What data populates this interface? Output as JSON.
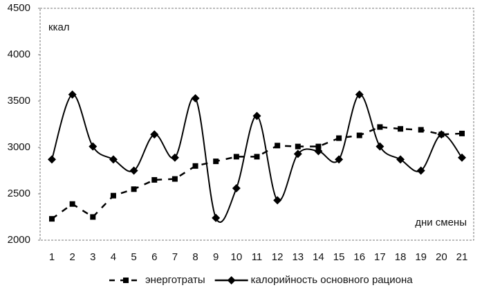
{
  "chart_data": {
    "type": "line",
    "y_label": "ккал",
    "x_label": "дни смены",
    "categories": [
      "1",
      "2",
      "3",
      "4",
      "5",
      "6",
      "7",
      "8",
      "9",
      "10",
      "11",
      "12",
      "13",
      "14",
      "15",
      "16",
      "17",
      "18",
      "19",
      "20",
      "21"
    ],
    "series": [
      {
        "name": "энерготраты",
        "color": "#000000",
        "style": "dashed",
        "marker": "square",
        "values": [
          2230,
          2390,
          2250,
          2480,
          2550,
          2650,
          2660,
          2800,
          2850,
          2900,
          2900,
          3020,
          3010,
          3010,
          3100,
          3130,
          3220,
          3200,
          3190,
          3140,
          3150
        ]
      },
      {
        "name": "калорийность основного рациона",
        "color": "#000000",
        "style": "smooth",
        "marker": "diamond",
        "values": [
          2870,
          3570,
          3010,
          2870,
          2750,
          3140,
          2890,
          3530,
          2240,
          2560,
          3340,
          2430,
          2930,
          2960,
          2870,
          3570,
          3010,
          2870,
          2750,
          3140,
          2890
        ]
      }
    ],
    "ylim": [
      2000,
      4500
    ],
    "yticks": [
      2000,
      2500,
      3000,
      3500,
      4000,
      4500
    ],
    "grid": false,
    "legend": "bottom"
  }
}
